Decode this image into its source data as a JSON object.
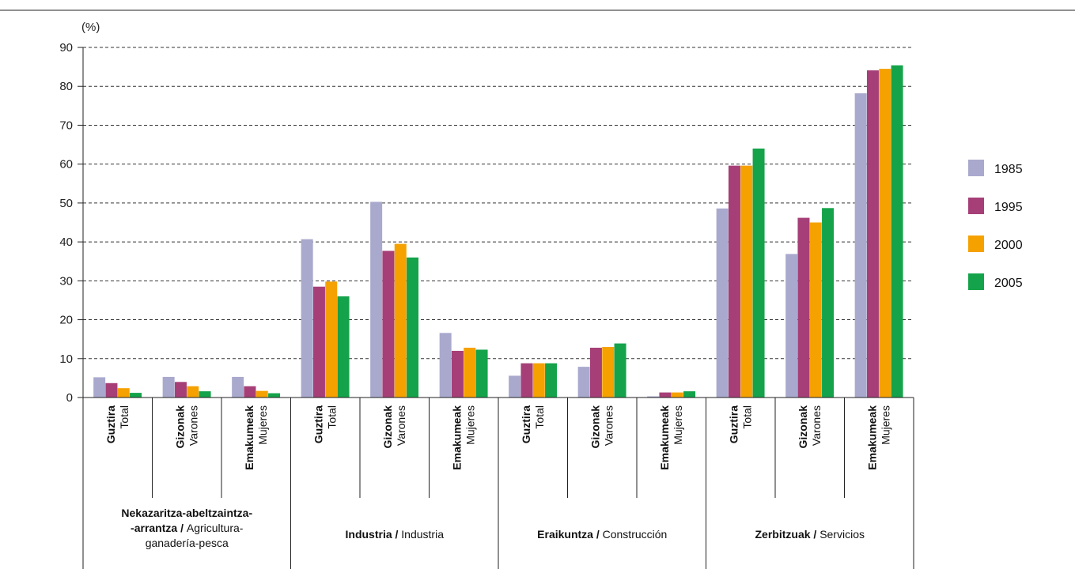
{
  "chart_data": {
    "type": "bar",
    "unit_label": "(%)",
    "ylim": [
      0,
      90
    ],
    "yticks": [
      0,
      10,
      20,
      30,
      40,
      50,
      60,
      70,
      80,
      90
    ],
    "grid": true,
    "legend_position": "right",
    "categories": [
      {
        "bold": "Guztira",
        "normal": "Total"
      },
      {
        "bold": "Gizonak",
        "normal": "Varones"
      },
      {
        "bold": "Emakumeak",
        "normal": "Mujeres"
      },
      {
        "bold": "Guztira",
        "normal": "Total"
      },
      {
        "bold": "Gizonak",
        "normal": "Varones"
      },
      {
        "bold": "Emakumeak",
        "normal": "Mujeres"
      },
      {
        "bold": "Guztira",
        "normal": "Total"
      },
      {
        "bold": "Gizonak",
        "normal": "Varones"
      },
      {
        "bold": "Emakumeak",
        "normal": "Mujeres"
      },
      {
        "bold": "Guztira",
        "normal": "Total"
      },
      {
        "bold": "Gizonak",
        "normal": "Varones"
      },
      {
        "bold": "Emakumeak",
        "normal": "Mujeres"
      }
    ],
    "groups": [
      {
        "lines": [
          [
            {
              "t": "Nekazaritza-abeltzaintza-",
              "b": true
            }
          ],
          [
            {
              "t": "-arrantza / ",
              "b": true
            },
            {
              "t": "Agricultura-",
              "b": false
            }
          ],
          [
            {
              "t": "ganadería-pesca",
              "b": false
            }
          ]
        ]
      },
      {
        "lines": [
          [
            {
              "t": "Industria / ",
              "b": true
            },
            {
              "t": "Industria",
              "b": false
            }
          ]
        ]
      },
      {
        "lines": [
          [
            {
              "t": "Eraikuntza / ",
              "b": true
            },
            {
              "t": "Construcción",
              "b": false
            }
          ]
        ]
      },
      {
        "lines": [
          [
            {
              "t": "Zerbitzuak / ",
              "b": true
            },
            {
              "t": "Servicios",
              "b": false
            }
          ]
        ]
      }
    ],
    "series": [
      {
        "name": "1985",
        "color": "#a9a9ce",
        "values": [
          5.2,
          5.3,
          5.3,
          40.7,
          50.3,
          16.6,
          5.6,
          7.9,
          0.3,
          48.6,
          36.9,
          78.2
        ]
      },
      {
        "name": "1995",
        "color": "#a63f77",
        "values": [
          3.7,
          4.0,
          2.9,
          28.5,
          37.7,
          12.0,
          8.8,
          12.8,
          1.3,
          59.6,
          46.2,
          84.1
        ]
      },
      {
        "name": "2000",
        "color": "#f5a100",
        "values": [
          2.4,
          2.9,
          1.7,
          29.8,
          39.5,
          12.8,
          8.8,
          13.0,
          1.3,
          59.6,
          45.0,
          84.5
        ]
      },
      {
        "name": "2005",
        "color": "#14a34a",
        "values": [
          1.2,
          1.6,
          1.1,
          26.0,
          36.0,
          12.3,
          8.8,
          13.9,
          1.6,
          64.0,
          48.7,
          85.4
        ]
      }
    ]
  }
}
